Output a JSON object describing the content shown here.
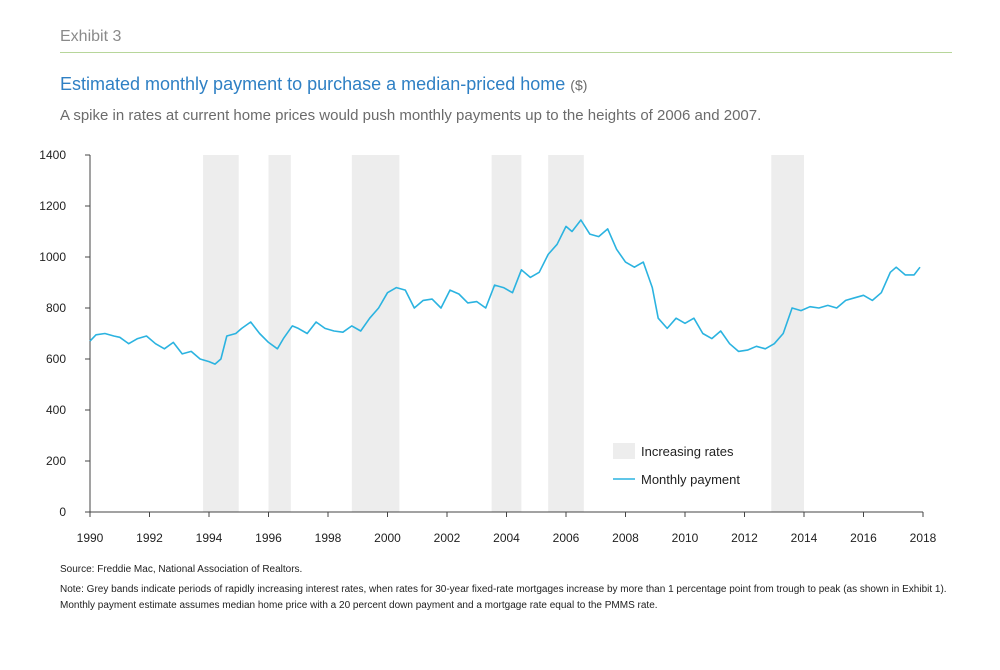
{
  "header": {
    "exhibit": "Exhibit 3",
    "title": "Estimated monthly payment to purchase a median-priced home",
    "title_unit": "($)",
    "subtitle": "A spike in rates at current home prices would push monthly payments up to the heights of 2006 and 2007."
  },
  "footer": {
    "source": "Source: Freddie Mac, National Association of Realtors.",
    "note": "Note: Grey bands indicate periods of rapidly increasing interest rates, when rates for 30-year fixed-rate mortgages increase by more than 1 percentage point from trough to peak (as shown in Exhibit 1). Monthly payment estimate assumes median home price with a 20 percent down payment and a mortgage rate equal to the PMMS rate."
  },
  "colors": {
    "line": "#2bb3e0",
    "band": "#ededed",
    "axis": "#444444",
    "title": "#2f80c4"
  },
  "chart_data": {
    "type": "line",
    "title": "Estimated monthly payment to purchase a median-priced home",
    "xlim": [
      1990,
      2018
    ],
    "ylim": [
      0,
      1400
    ],
    "x_ticks": [
      1990,
      1992,
      1994,
      1996,
      1998,
      2000,
      2002,
      2004,
      2006,
      2008,
      2010,
      2012,
      2014,
      2016,
      2018
    ],
    "y_ticks": [
      0,
      200,
      400,
      600,
      800,
      1000,
      1200,
      1400
    ],
    "grid": false,
    "legend_position": "bottom-right",
    "legend": {
      "band_label": "Increasing rates",
      "line_label": "Monthly payment"
    },
    "bands": [
      {
        "start": 1993.8,
        "end": 1995.0
      },
      {
        "start": 1996.0,
        "end": 1996.75
      },
      {
        "start": 1998.8,
        "end": 2000.4
      },
      {
        "start": 2003.5,
        "end": 2004.5
      },
      {
        "start": 2005.4,
        "end": 2006.6
      },
      {
        "start": 2012.9,
        "end": 2014.0
      }
    ],
    "series": [
      {
        "name": "Monthly payment",
        "points": [
          [
            1990.0,
            670
          ],
          [
            1990.2,
            695
          ],
          [
            1990.5,
            700
          ],
          [
            1990.8,
            690
          ],
          [
            1991.0,
            685
          ],
          [
            1991.3,
            660
          ],
          [
            1991.6,
            680
          ],
          [
            1991.9,
            690
          ],
          [
            1992.2,
            660
          ],
          [
            1992.5,
            640
          ],
          [
            1992.8,
            665
          ],
          [
            1993.1,
            620
          ],
          [
            1993.4,
            630
          ],
          [
            1993.7,
            600
          ],
          [
            1994.0,
            590
          ],
          [
            1994.2,
            580
          ],
          [
            1994.4,
            600
          ],
          [
            1994.6,
            690
          ],
          [
            1994.9,
            700
          ],
          [
            1995.1,
            720
          ],
          [
            1995.4,
            745
          ],
          [
            1995.7,
            700
          ],
          [
            1996.0,
            665
          ],
          [
            1996.3,
            640
          ],
          [
            1996.5,
            680
          ],
          [
            1996.8,
            730
          ],
          [
            1997.0,
            720
          ],
          [
            1997.3,
            700
          ],
          [
            1997.6,
            745
          ],
          [
            1997.9,
            720
          ],
          [
            1998.2,
            710
          ],
          [
            1998.5,
            705
          ],
          [
            1998.8,
            730
          ],
          [
            1999.1,
            710
          ],
          [
            1999.4,
            760
          ],
          [
            1999.7,
            800
          ],
          [
            2000.0,
            860
          ],
          [
            2000.3,
            880
          ],
          [
            2000.6,
            870
          ],
          [
            2000.9,
            800
          ],
          [
            2001.2,
            830
          ],
          [
            2001.5,
            835
          ],
          [
            2001.8,
            800
          ],
          [
            2002.1,
            870
          ],
          [
            2002.4,
            855
          ],
          [
            2002.7,
            820
          ],
          [
            2003.0,
            825
          ],
          [
            2003.3,
            800
          ],
          [
            2003.6,
            890
          ],
          [
            2003.9,
            880
          ],
          [
            2004.2,
            860
          ],
          [
            2004.5,
            950
          ],
          [
            2004.8,
            920
          ],
          [
            2005.1,
            940
          ],
          [
            2005.4,
            1010
          ],
          [
            2005.7,
            1050
          ],
          [
            2006.0,
            1120
          ],
          [
            2006.2,
            1100
          ],
          [
            2006.5,
            1145
          ],
          [
            2006.8,
            1090
          ],
          [
            2007.1,
            1080
          ],
          [
            2007.4,
            1110
          ],
          [
            2007.7,
            1030
          ],
          [
            2008.0,
            980
          ],
          [
            2008.3,
            960
          ],
          [
            2008.6,
            980
          ],
          [
            2008.9,
            880
          ],
          [
            2009.1,
            760
          ],
          [
            2009.4,
            720
          ],
          [
            2009.7,
            760
          ],
          [
            2010.0,
            740
          ],
          [
            2010.3,
            760
          ],
          [
            2010.6,
            700
          ],
          [
            2010.9,
            680
          ],
          [
            2011.2,
            710
          ],
          [
            2011.5,
            660
          ],
          [
            2011.8,
            630
          ],
          [
            2012.1,
            635
          ],
          [
            2012.4,
            650
          ],
          [
            2012.7,
            640
          ],
          [
            2013.0,
            660
          ],
          [
            2013.3,
            700
          ],
          [
            2013.6,
            800
          ],
          [
            2013.9,
            790
          ],
          [
            2014.2,
            805
          ],
          [
            2014.5,
            800
          ],
          [
            2014.8,
            810
          ],
          [
            2015.1,
            800
          ],
          [
            2015.4,
            830
          ],
          [
            2015.7,
            840
          ],
          [
            2016.0,
            850
          ],
          [
            2016.3,
            830
          ],
          [
            2016.6,
            860
          ],
          [
            2016.9,
            940
          ],
          [
            2017.1,
            960
          ],
          [
            2017.4,
            930
          ],
          [
            2017.7,
            930
          ],
          [
            2017.9,
            960
          ]
        ]
      }
    ]
  }
}
